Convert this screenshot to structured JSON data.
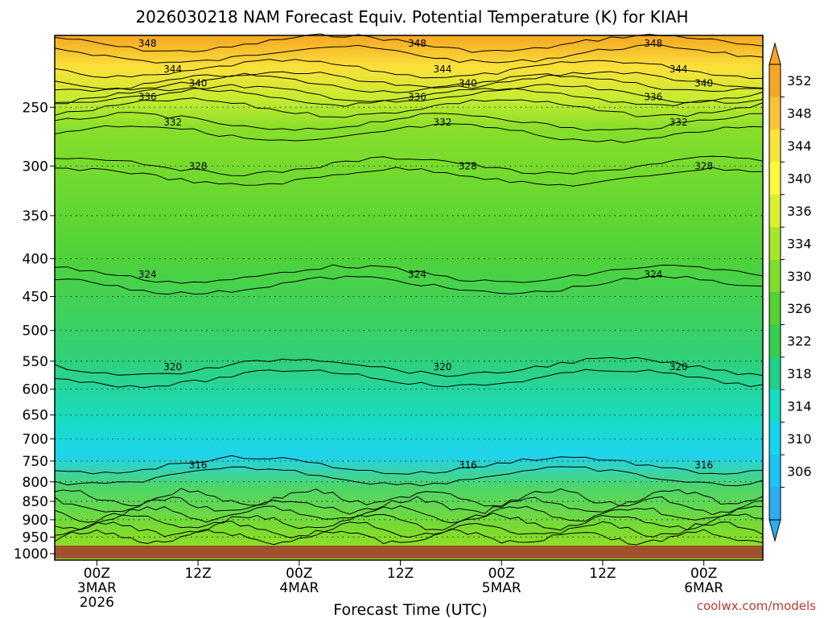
{
  "chart_data": {
    "type": "contour",
    "title": "2026030218 NAM Forecast Equiv. Potential Temperature (K) for KIAH",
    "xlabel": "Forecast Time (UTC)",
    "ylabel": "",
    "y_scale": "log-pressure",
    "ylim": [
      1020,
      200
    ],
    "y_ticks": [
      250,
      300,
      350,
      400,
      450,
      500,
      550,
      600,
      650,
      700,
      750,
      800,
      850,
      900,
      950,
      1000
    ],
    "x_range_hours": [
      -5,
      79
    ],
    "x_ticks": [
      {
        "hour": 0,
        "lines": [
          "00Z",
          "3MAR",
          "2026"
        ]
      },
      {
        "hour": 12,
        "lines": [
          "12Z"
        ]
      },
      {
        "hour": 24,
        "lines": [
          "00Z",
          "4MAR"
        ]
      },
      {
        "hour": 36,
        "lines": [
          "12Z"
        ]
      },
      {
        "hour": 48,
        "lines": [
          "00Z",
          "5MAR"
        ]
      },
      {
        "hour": 60,
        "lines": [
          "12Z"
        ]
      },
      {
        "hour": 72,
        "lines": [
          "00Z",
          "6MAR"
        ]
      }
    ],
    "colorbar": {
      "labels": [
        352,
        348,
        344,
        340,
        336,
        334,
        330,
        326,
        322,
        318,
        314,
        310,
        306
      ],
      "colors": [
        "#f5a623",
        "#f7c531",
        "#f8e538",
        "#fbfb3c",
        "#d8f12f",
        "#a6e62a",
        "#7fdc2a",
        "#54d133",
        "#35cf4e",
        "#1fd189",
        "#14dcc3",
        "#12d6ee",
        "#1cc3f5",
        "#2aaeef"
      ]
    },
    "contour_levels": [
      316,
      320,
      324,
      328,
      332,
      336,
      340,
      344,
      348
    ],
    "grid": "dotted",
    "credit": "coolwx.com/models"
  }
}
